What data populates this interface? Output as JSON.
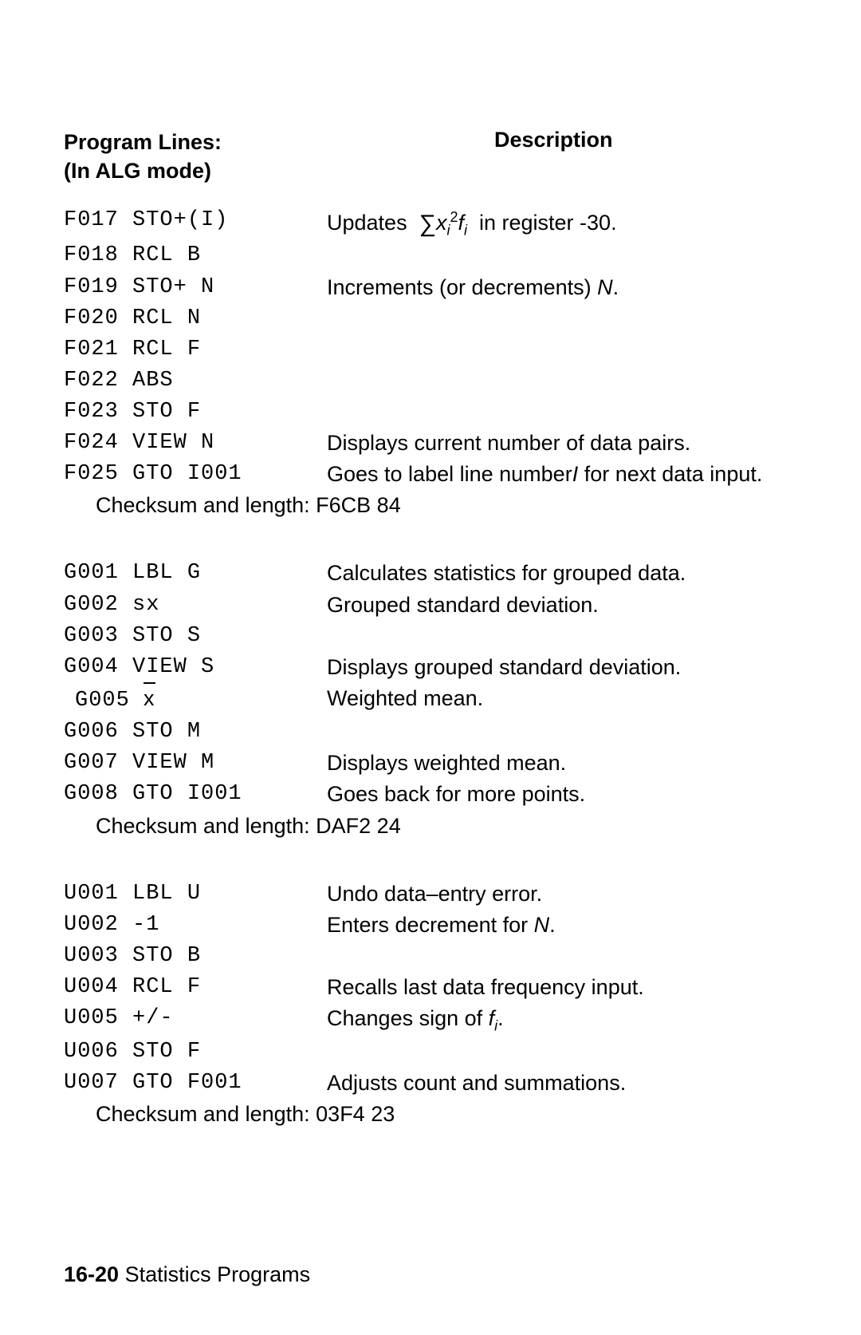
{
  "heading": {
    "left_line1": "Program Lines:",
    "left_line2": "(In ALG mode)",
    "right": "Description"
  },
  "sections": [
    {
      "rows": [
        {
          "code": "F017 STO+(I)",
          "desc_html": "Updates &nbsp;<span class=\"sigma\">&sum;</span><span class=\"ital\">x</span><sub>i</sub><sup style=\"font-size:18px;\">2</sup><span class=\"ital\">f</span><sub>i</sub>&nbsp; in register -30."
        },
        {
          "code": "F018 RCL B",
          "desc_html": ""
        },
        {
          "code": "F019 STO+ N",
          "desc_html": "Increments (or decrements) <span class=\"ital\">N</span>."
        },
        {
          "code": "F020 RCL N",
          "desc_html": ""
        },
        {
          "code": "F021 RCL F",
          "desc_html": ""
        },
        {
          "code": "F022 ABS",
          "desc_html": ""
        },
        {
          "code": "F023 STO F",
          "desc_html": ""
        },
        {
          "code": "F024 VIEW N",
          "desc_html": "Displays current number of data pairs."
        },
        {
          "code": "F025 GTO I001",
          "desc_html": "Goes to label line number<span class=\"ital\">I</span> for next data input."
        }
      ],
      "checksum": "Checksum and length: F6CB 84"
    },
    {
      "rows": [
        {
          "code": "G001 LBL G",
          "desc_html": "Calculates statistics for grouped data."
        },
        {
          "code": "G002 sx",
          "desc_html": "Grouped standard deviation."
        },
        {
          "code": "G003 STO S",
          "desc_html": ""
        },
        {
          "code": "G004 VIEW S",
          "desc_html": "Displays grouped standard deviation."
        },
        {
          "code_html": "G005&nbsp;<span class=\"xbar\">x</span>",
          "desc_html": "Weighted mean.",
          "indent": true
        },
        {
          "code": "G006 STO M",
          "desc_html": ""
        },
        {
          "code": "G007 VIEW M",
          "desc_html": "Displays weighted mean."
        },
        {
          "code": "G008 GTO I001",
          "desc_html": "Goes back for more points."
        }
      ],
      "checksum": "Checksum and length: DAF2  24"
    },
    {
      "rows": [
        {
          "code": "U001 LBL U",
          "desc_html": "Undo data–entry error."
        },
        {
          "code": "U002 -1",
          "desc_html": "Enters decrement for <span class=\"ital\">N</span>."
        },
        {
          "code": "U003 STO B",
          "desc_html": ""
        },
        {
          "code": "U004 RCL F",
          "desc_html": "Recalls last data frequency input."
        },
        {
          "code": "U005 +/-",
          "desc_html": "Changes sign of <span class=\"ital\">f</span><sub>i</sub>."
        },
        {
          "code": "U006 STO F",
          "desc_html": ""
        },
        {
          "code": "U007 GTO F001",
          "desc_html": "Adjusts count and summations."
        }
      ],
      "checksum": "Checksum and length: 03F4 23"
    }
  ],
  "footer": {
    "page": "16-20",
    "title": " Statistics Programs"
  }
}
